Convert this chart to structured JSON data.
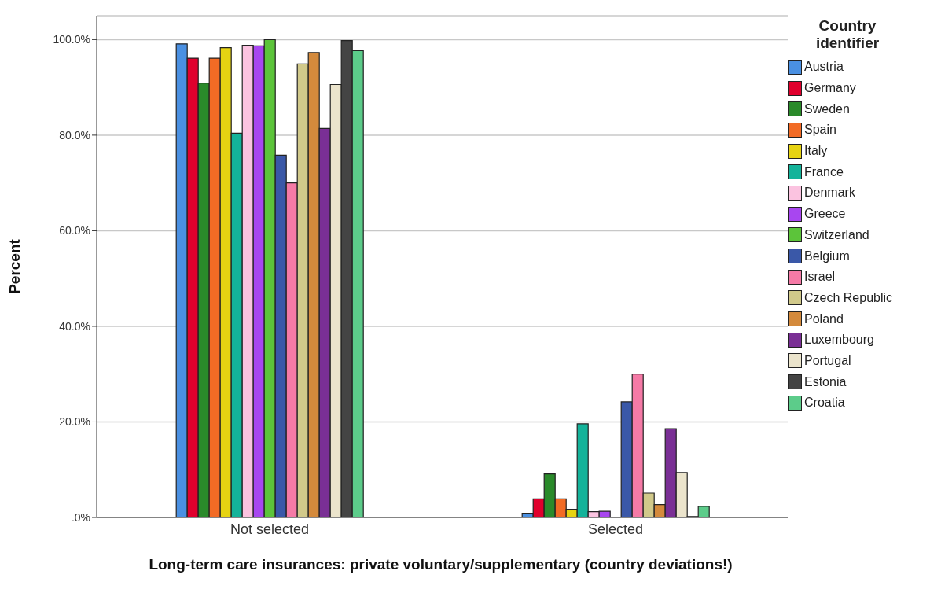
{
  "chart_data": {
    "type": "bar",
    "xlabel": "Long-term care insurances: private voluntary/supplementary (country deviations!)",
    "ylabel": "Percent",
    "legend_title": "Country identifier",
    "categories": [
      "Not selected",
      "Selected"
    ],
    "series": [
      {
        "name": "Austria",
        "color": "#4a90e2",
        "values": [
          99.1,
          0.9
        ]
      },
      {
        "name": "Germany",
        "color": "#e0002d",
        "values": [
          96.1,
          3.9
        ]
      },
      {
        "name": "Sweden",
        "color": "#2a8a2a",
        "values": [
          90.9,
          9.1
        ]
      },
      {
        "name": "Spain",
        "color": "#f26b25",
        "values": [
          96.1,
          3.9
        ]
      },
      {
        "name": "Italy",
        "color": "#e6d312",
        "values": [
          98.3,
          1.7
        ]
      },
      {
        "name": "France",
        "color": "#14b39a",
        "values": [
          80.4,
          19.6
        ]
      },
      {
        "name": "Denmark",
        "color": "#fbc3e0",
        "values": [
          98.8,
          1.2
        ]
      },
      {
        "name": "Greece",
        "color": "#a846f0",
        "values": [
          98.7,
          1.3
        ]
      },
      {
        "name": "Switzerland",
        "color": "#5cc43a",
        "values": [
          100,
          0
        ]
      },
      {
        "name": "Belgium",
        "color": "#3a58a8",
        "values": [
          75.8,
          24.2
        ]
      },
      {
        "name": "Israel",
        "color": "#f57aa6",
        "values": [
          70.0,
          30.0
        ]
      },
      {
        "name": "Czech Republic",
        "color": "#d1c98a",
        "values": [
          94.9,
          5.1
        ]
      },
      {
        "name": "Poland",
        "color": "#d48a3c",
        "values": [
          97.3,
          2.7
        ]
      },
      {
        "name": "Luxembourg",
        "color": "#7a2f95",
        "values": [
          81.4,
          18.6
        ]
      },
      {
        "name": "Portugal",
        "color": "#ebe4cc",
        "values": [
          90.6,
          9.4
        ]
      },
      {
        "name": "Estonia",
        "color": "#444444",
        "values": [
          99.8,
          0.2
        ]
      },
      {
        "name": "Croatia",
        "color": "#5ccc8a",
        "values": [
          97.7,
          2.3
        ]
      }
    ],
    "ylim": [
      0,
      105
    ],
    "yticks": [
      {
        "value": 0,
        "label": ".0%"
      },
      {
        "value": 20,
        "label": "20.0%"
      },
      {
        "value": 40,
        "label": "40.0%"
      },
      {
        "value": 60,
        "label": "60.0%"
      },
      {
        "value": 80,
        "label": "80.0%"
      },
      {
        "value": 100,
        "label": "100.0%"
      }
    ],
    "grid": "y",
    "legend": "right"
  }
}
